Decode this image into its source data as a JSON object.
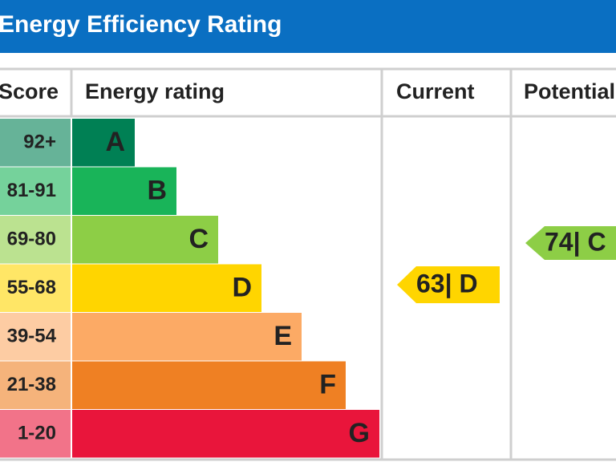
{
  "header": {
    "title": "Energy Efficiency Rating"
  },
  "table": {
    "columns": [
      "Score",
      "Energy rating",
      "Current",
      "Potential"
    ],
    "bands": [
      {
        "score": "92+",
        "letter": "A",
        "color": "#008054"
      },
      {
        "score": "81-91",
        "letter": "B",
        "color": "#19b459"
      },
      {
        "score": "69-80",
        "letter": "C",
        "color": "#8dce46"
      },
      {
        "score": "55-68",
        "letter": "D",
        "color": "#ffd500"
      },
      {
        "score": "39-54",
        "letter": "E",
        "color": "#fcaa65"
      },
      {
        "score": "21-38",
        "letter": "F",
        "color": "#ef8023"
      },
      {
        "score": "1-20",
        "letter": "G",
        "color": "#e9153b"
      }
    ],
    "current": {
      "label": "63| D",
      "color": "#ffd500"
    },
    "potential": {
      "label": "74| C",
      "color": "#8dce46"
    }
  }
}
